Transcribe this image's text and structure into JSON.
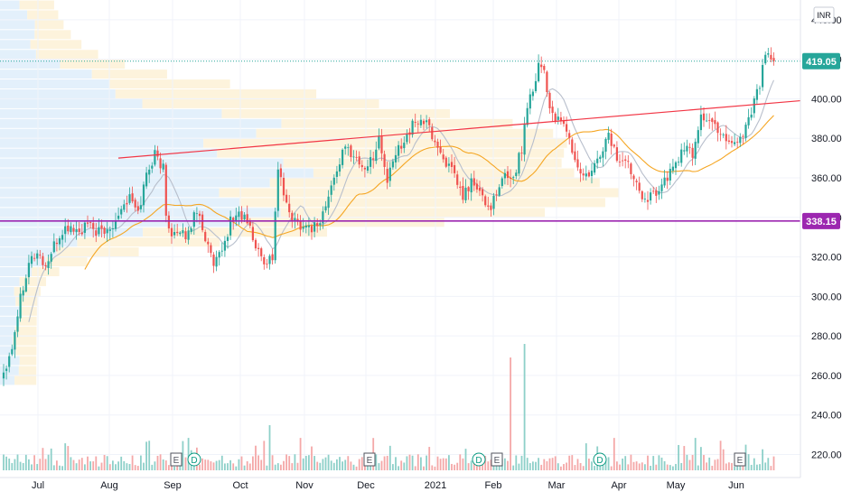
{
  "chart_data": {
    "type": "candlestick",
    "currency_label": "INR",
    "x_tick_labels": [
      "Jul",
      "Aug",
      "Sep",
      "Oct",
      "Nov",
      "Dec",
      "2021",
      "Feb",
      "Mar",
      "Apr",
      "May",
      "Jun"
    ],
    "y_axis": {
      "range": [
        212,
        450
      ],
      "ticks": [
        220,
        240,
        260,
        280,
        300,
        320,
        340,
        360,
        380,
        400,
        420,
        440
      ],
      "tick_labels": [
        "220.00",
        "240.00",
        "260.00",
        "280.00",
        "300.00",
        "320.00",
        "340.00",
        "360.00",
        "380.00",
        "400.00",
        "420.00",
        "440.00"
      ]
    },
    "last_price": {
      "value": 419.05,
      "label": "419.05",
      "color": "#26a69a"
    },
    "support_level": {
      "value": 338.15,
      "label": "338.15",
      "color": "#9c27b0"
    },
    "resistance_trendline": {
      "from": {
        "month": "Aug",
        "price": 370
      },
      "to": {
        "month": "Jun",
        "price": 399
      },
      "color": "#f23645"
    },
    "events": [
      {
        "type": "E",
        "month": "Sep"
      },
      {
        "type": "D",
        "month": "Sep"
      },
      {
        "type": "E",
        "month": "Dec"
      },
      {
        "type": "D",
        "month": "2021"
      },
      {
        "type": "E",
        "month": "Feb"
      },
      {
        "type": "D",
        "month": "Mar"
      },
      {
        "type": "E",
        "month": "Jun"
      }
    ],
    "price_path": [
      [
        0,
        262
      ],
      [
        3,
        275
      ],
      [
        6,
        300
      ],
      [
        9,
        318
      ],
      [
        12,
        322
      ],
      [
        15,
        315
      ],
      [
        18,
        325
      ],
      [
        21,
        333
      ],
      [
        24,
        335
      ],
      [
        27,
        332
      ],
      [
        30,
        336
      ],
      [
        33,
        333
      ],
      [
        36,
        332
      ],
      [
        39,
        337
      ],
      [
        42,
        345
      ],
      [
        45,
        350
      ],
      [
        48,
        342
      ],
      [
        51,
        362
      ],
      [
        54,
        372
      ],
      [
        57,
        365
      ],
      [
        58,
        340
      ],
      [
        60,
        333
      ],
      [
        63,
        330
      ],
      [
        66,
        332
      ],
      [
        69,
        345
      ],
      [
        72,
        330
      ],
      [
        75,
        315
      ],
      [
        78,
        322
      ],
      [
        81,
        338
      ],
      [
        84,
        342
      ],
      [
        87,
        338
      ],
      [
        90,
        325
      ],
      [
        93,
        318
      ],
      [
        96,
        320
      ],
      [
        98,
        365
      ],
      [
        101,
        345
      ],
      [
        104,
        338
      ],
      [
        107,
        336
      ],
      [
        110,
        335
      ],
      [
        113,
        338
      ],
      [
        116,
        350
      ],
      [
        119,
        365
      ],
      [
        122,
        375
      ],
      [
        125,
        372
      ],
      [
        128,
        365
      ],
      [
        131,
        368
      ],
      [
        134,
        380
      ],
      [
        137,
        358
      ],
      [
        140,
        372
      ],
      [
        143,
        380
      ],
      [
        146,
        386
      ],
      [
        149,
        390
      ],
      [
        152,
        385
      ],
      [
        155,
        375
      ],
      [
        158,
        368
      ],
      [
        161,
        360
      ],
      [
        164,
        350
      ],
      [
        167,
        358
      ],
      [
        170,
        352
      ],
      [
        173,
        345
      ],
      [
        176,
        350
      ],
      [
        179,
        362
      ],
      [
        182,
        360
      ],
      [
        185,
        375
      ],
      [
        187,
        398
      ],
      [
        189,
        405
      ],
      [
        191,
        418
      ],
      [
        193,
        415
      ],
      [
        195,
        395
      ],
      [
        198,
        388
      ],
      [
        201,
        385
      ],
      [
        204,
        368
      ],
      [
        207,
        360
      ],
      [
        210,
        362
      ],
      [
        213,
        372
      ],
      [
        216,
        382
      ],
      [
        219,
        370
      ],
      [
        222,
        368
      ],
      [
        225,
        362
      ],
      [
        228,
        352
      ],
      [
        231,
        350
      ],
      [
        234,
        355
      ],
      [
        237,
        360
      ],
      [
        240,
        368
      ],
      [
        243,
        375
      ],
      [
        246,
        372
      ],
      [
        249,
        392
      ],
      [
        252,
        388
      ],
      [
        255,
        385
      ],
      [
        258,
        380
      ],
      [
        261,
        378
      ],
      [
        264,
        382
      ],
      [
        267,
        395
      ],
      [
        270,
        408
      ],
      [
        272,
        422
      ],
      [
        274,
        419
      ]
    ],
    "volume_spikes": [
      {
        "month_index": 7.4,
        "relative": 1.0
      },
      {
        "month_index": 7.65,
        "relative": 1.12
      },
      {
        "month_index": 3.65,
        "relative": 0.4
      },
      {
        "month_index": 11.6,
        "relative": 0.42
      }
    ]
  }
}
